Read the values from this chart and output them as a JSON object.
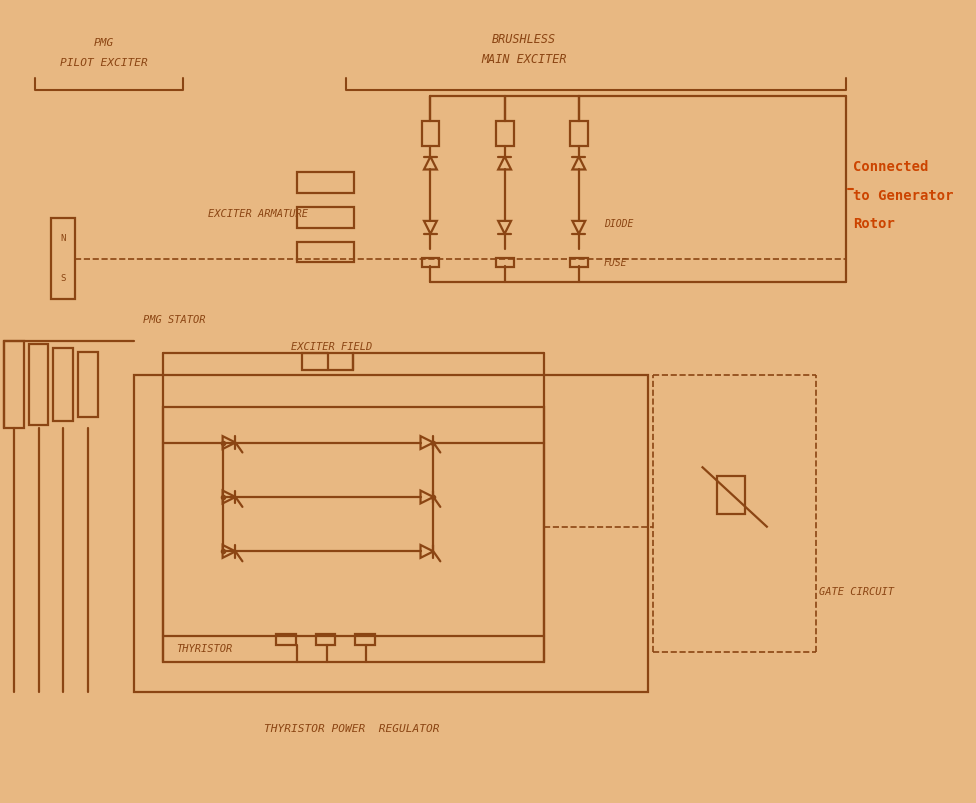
{
  "bg_color": "#e8b882",
  "line_color": "#8B4513",
  "text_color": "#8B4513",
  "highlight_color": "#cc4400",
  "lw": 1.6,
  "labels": {
    "pmg_pilot": [
      "PMG",
      "PILOT EXCITER"
    ],
    "brushless_main": [
      "BRUSHLESS",
      "MAIN EXCITER"
    ],
    "exciter_armature": "EXCITER ARMATURE",
    "pmg_stator": "PMG STATOR",
    "exciter_field": "EXCITER FIELD",
    "diode": "DIODE",
    "fuse": "FUSE",
    "thyristor": "THYRISTOR",
    "gate_circuit": "GATE CIRCUIT",
    "tpr": "THYRISTOR POWER  REGULATOR",
    "connected": [
      "Connected",
      "to Generator",
      "Rotor"
    ]
  }
}
